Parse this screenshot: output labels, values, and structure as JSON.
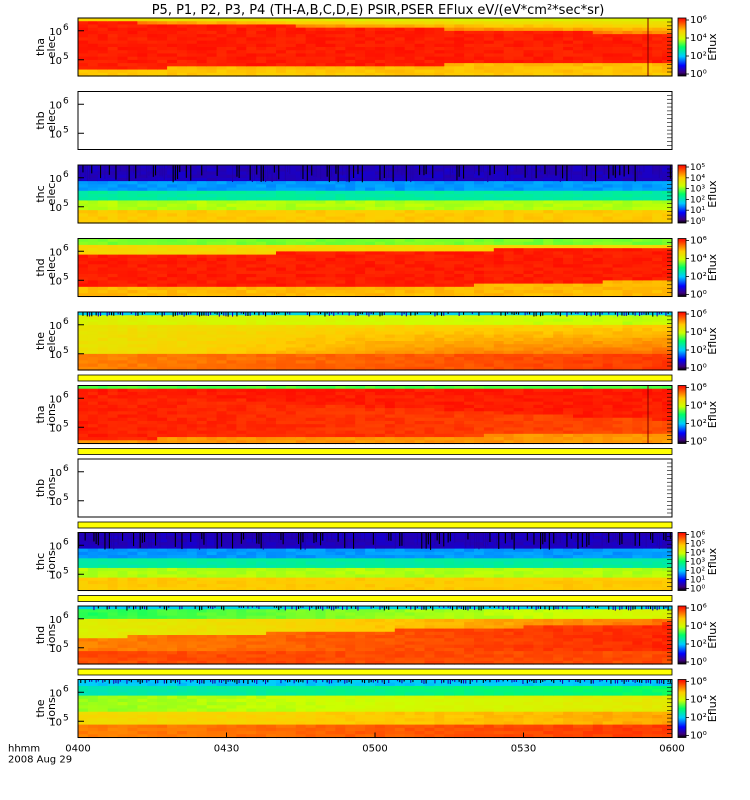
{
  "chart_data": {
    "type": "heatmap",
    "title": "P5, P1, P2, P3, P4 (TH-A,B,C,D,E) PSIR,PSER EFlux eV/(eV*cm²*sec*sr)",
    "x_axis": {
      "row_label": "hhmm",
      "date_label": "2008 Aug 29",
      "ticks": [
        "0400",
        "0430",
        "0500",
        "0530",
        "0600"
      ],
      "range": [
        "0400",
        "0600"
      ]
    },
    "colorbar_label": "Eflux",
    "panels": [
      {
        "id": "tha-elec",
        "label_top": "tha",
        "label_bottom": "elec",
        "yticks": [
          {
            "base": "10",
            "exp": "6"
          },
          {
            "base": "10",
            "exp": "5"
          }
        ],
        "has_data": true,
        "pattern": "tha_elec",
        "colorbar": [
          "10⁰",
          "10²",
          "10⁴",
          "10⁶"
        ]
      },
      {
        "id": "thb-elec",
        "label_top": "thb",
        "label_bottom": "elec",
        "yticks": [
          {
            "base": "10",
            "exp": "6"
          },
          {
            "base": "10",
            "exp": "5"
          }
        ],
        "has_data": false
      },
      {
        "id": "thc-elec",
        "label_top": "thc",
        "label_bottom": "elec",
        "yticks": [
          {
            "base": "10",
            "exp": "6"
          },
          {
            "base": "10",
            "exp": "5"
          }
        ],
        "has_data": true,
        "pattern": "thc",
        "colorbar": [
          "10⁰",
          "10¹",
          "10²",
          "10³",
          "10⁴",
          "10⁵"
        ]
      },
      {
        "id": "thd-elec",
        "label_top": "thd",
        "label_bottom": "elec",
        "yticks": [
          {
            "base": "10",
            "exp": "6"
          },
          {
            "base": "10",
            "exp": "5"
          }
        ],
        "has_data": true,
        "pattern": "thd_elec",
        "colorbar": [
          "10⁰",
          "10²",
          "10⁴",
          "10⁶"
        ]
      },
      {
        "id": "the-elec",
        "label_top": "the",
        "label_bottom": "elec",
        "yticks": [
          {
            "base": "10",
            "exp": "6"
          },
          {
            "base": "10",
            "exp": "5"
          }
        ],
        "has_data": true,
        "pattern": "the_elec",
        "colorbar": [
          "10⁰",
          "10²",
          "10⁴",
          "10⁶"
        ]
      },
      {
        "id": "tha-ions",
        "label_top": "tha",
        "label_bottom": "ions",
        "yticks": [
          {
            "base": "10",
            "exp": "6"
          },
          {
            "base": "10",
            "exp": "5"
          }
        ],
        "has_data": true,
        "pattern": "tha_ions",
        "colorbar": [
          "10⁰",
          "10²",
          "10⁴",
          "10⁶"
        ]
      },
      {
        "id": "thb-ions",
        "label_top": "thb",
        "label_bottom": "ions",
        "yticks": [
          {
            "base": "10",
            "exp": "6"
          },
          {
            "base": "10",
            "exp": "5"
          }
        ],
        "has_data": false
      },
      {
        "id": "thc-ions",
        "label_top": "thc",
        "label_bottom": "ions",
        "yticks": [
          {
            "base": "10",
            "exp": "6"
          },
          {
            "base": "10",
            "exp": "5"
          }
        ],
        "has_data": true,
        "pattern": "thc",
        "colorbar": [
          "10⁰",
          "10¹",
          "10²",
          "10³",
          "10⁴",
          "10⁵",
          "10⁶"
        ]
      },
      {
        "id": "thd-ions",
        "label_top": "thd",
        "label_bottom": "ions",
        "yticks": [
          {
            "base": "10",
            "exp": "6"
          },
          {
            "base": "10",
            "exp": "5"
          }
        ],
        "has_data": true,
        "pattern": "thd_ions",
        "colorbar": [
          "10⁰",
          "10²",
          "10⁴",
          "10⁶"
        ]
      },
      {
        "id": "the-ions",
        "label_top": "the",
        "label_bottom": "ions",
        "yticks": [
          {
            "base": "10",
            "exp": "6"
          },
          {
            "base": "10",
            "exp": "5"
          }
        ],
        "has_data": true,
        "pattern": "the_ions",
        "colorbar": [
          "10⁰",
          "10²",
          "10⁴",
          "10⁶"
        ]
      }
    ]
  }
}
